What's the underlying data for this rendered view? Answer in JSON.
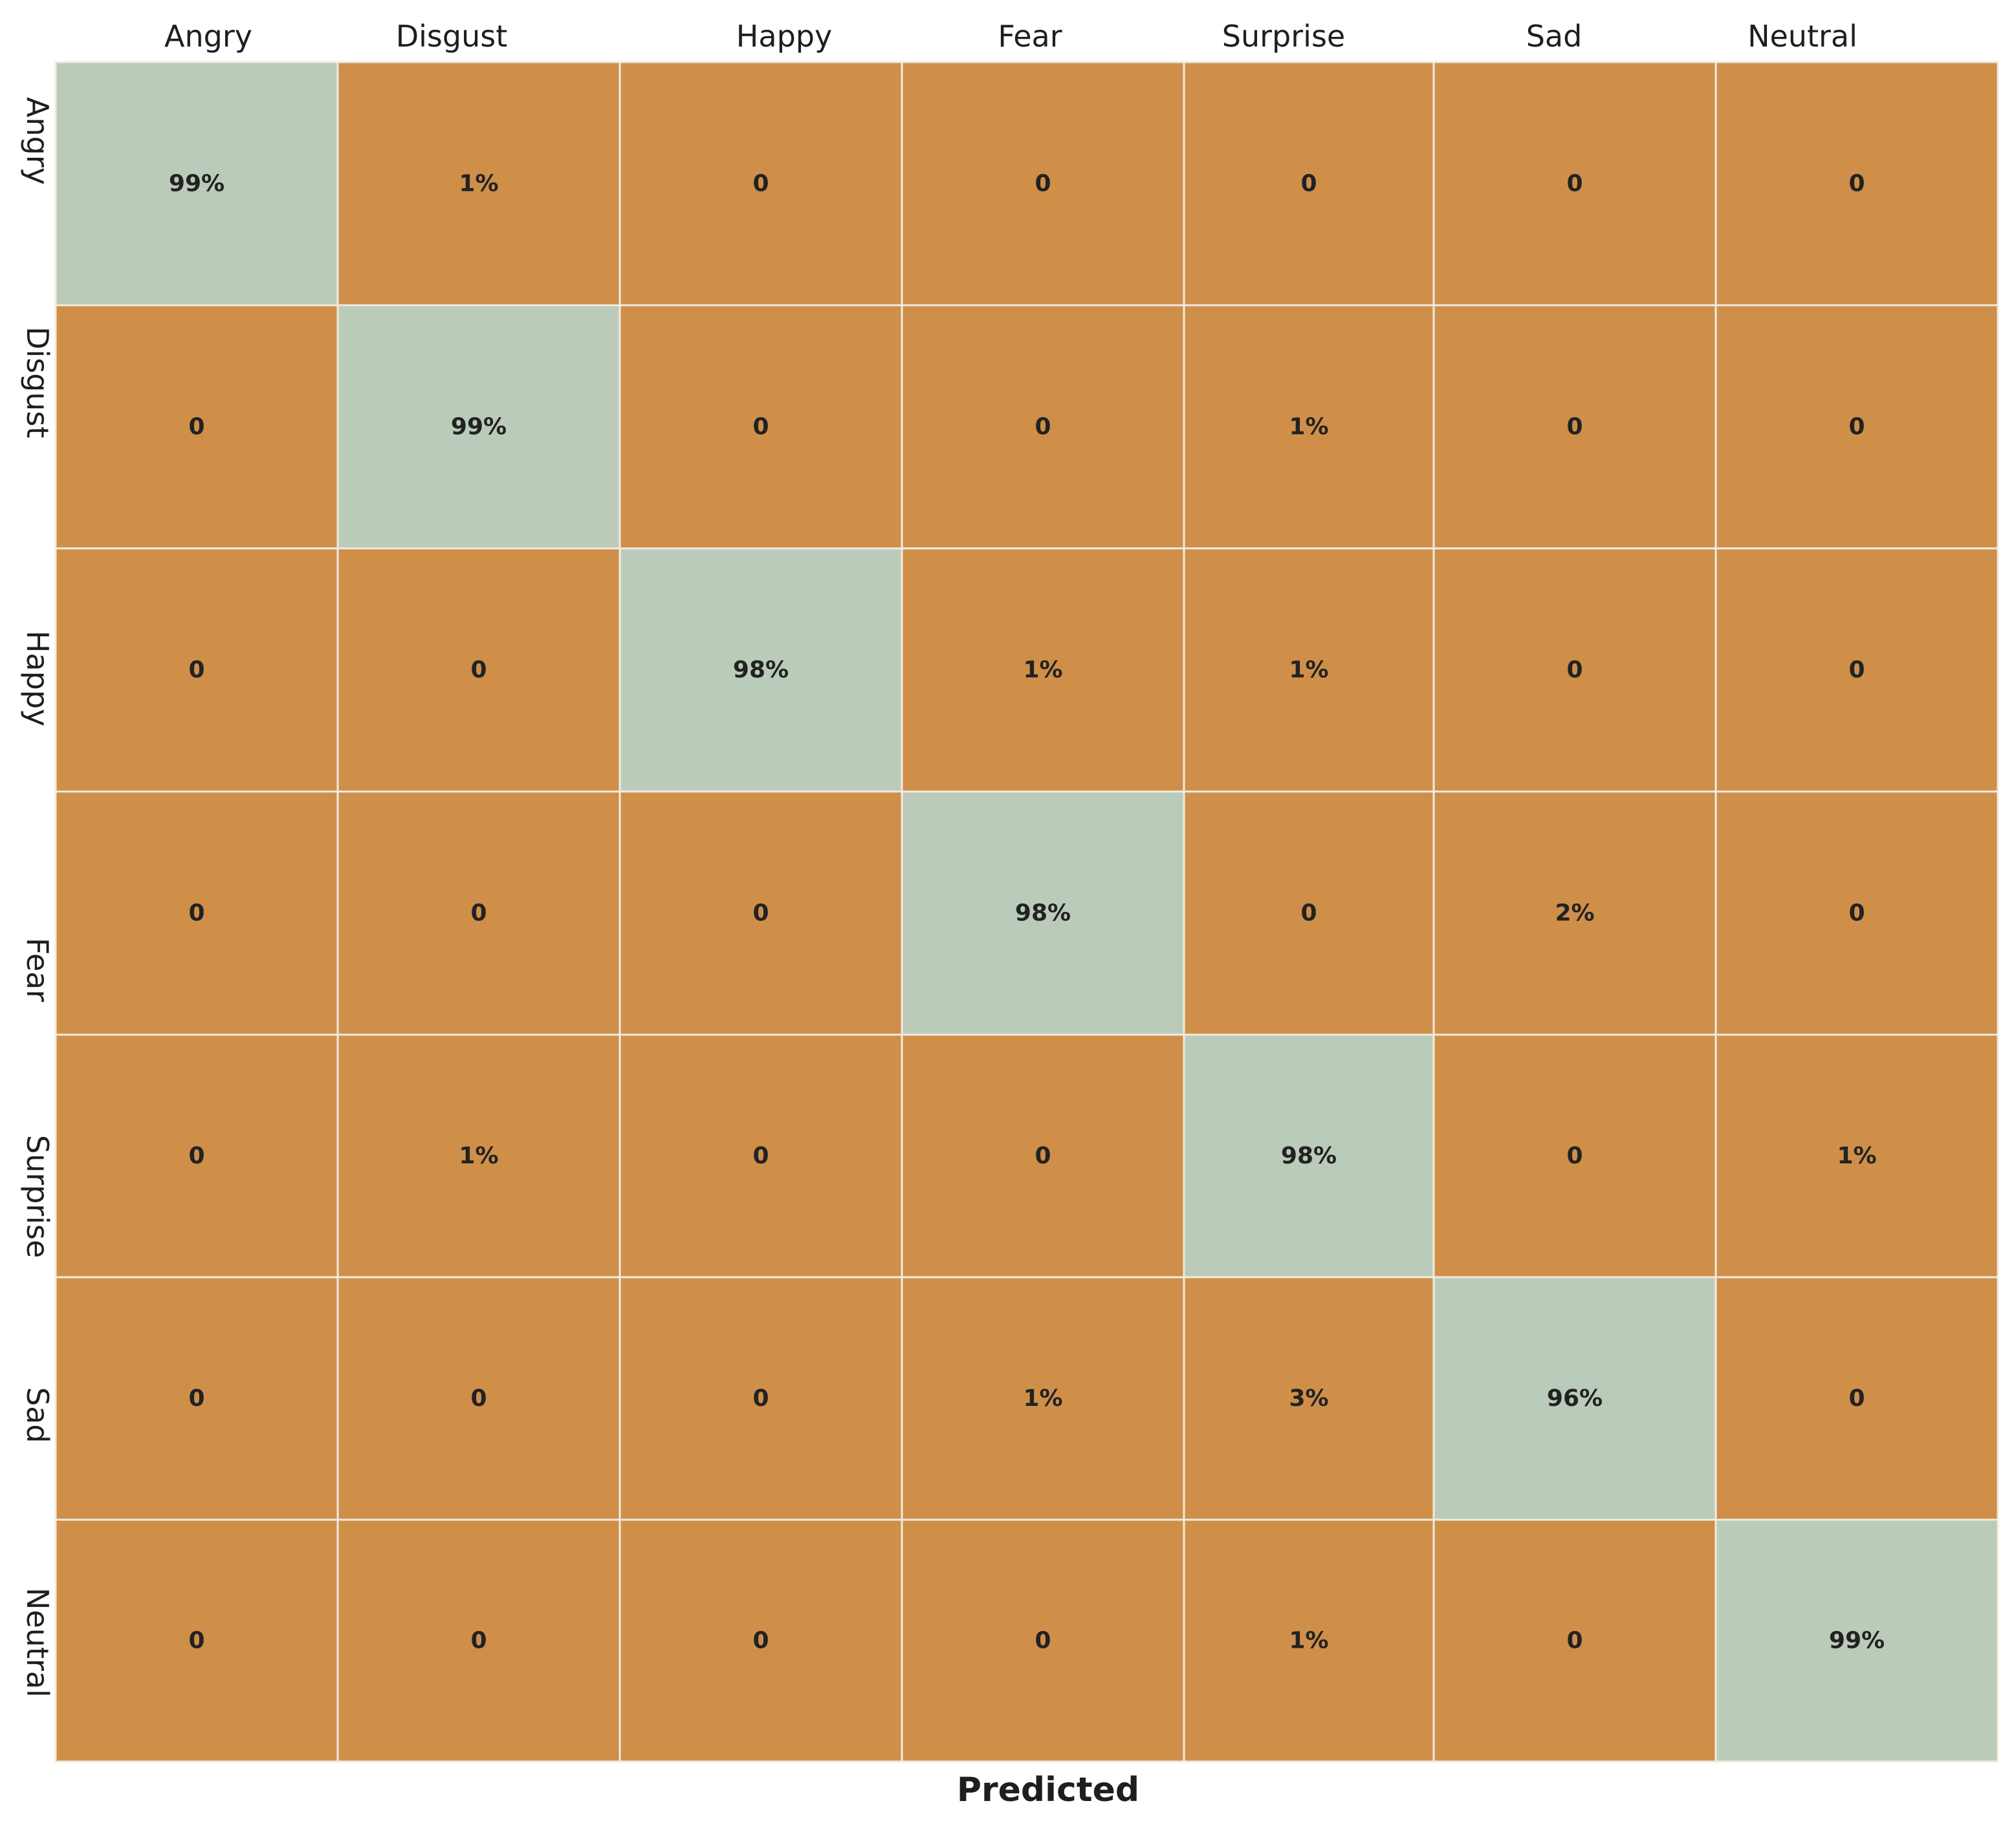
{
  "chart_data": {
    "type": "heatmap",
    "title": "",
    "xlabel": "Predicted",
    "ylabel": "",
    "columns": [
      "Angry",
      "Disgust",
      "Happy",
      "Fear",
      "Surprise",
      "Sad",
      "Neutral"
    ],
    "rows": [
      "Angry",
      "Disgust",
      "Happy",
      "Fear",
      "Surprise",
      "Sad",
      "Neutral"
    ],
    "cells": [
      [
        "99%",
        "1%",
        "0",
        "0",
        "0",
        "0",
        "0"
      ],
      [
        "0",
        "99%",
        "0",
        "0",
        "1%",
        "0",
        "0"
      ],
      [
        "0",
        "0",
        "98%",
        "1%",
        "1%",
        "0",
        "0"
      ],
      [
        "0",
        "0",
        "0",
        "98%",
        "0",
        "2%",
        "0"
      ],
      [
        "0",
        "1%",
        "0",
        "0",
        "98%",
        "0",
        "1%"
      ],
      [
        "0",
        "0",
        "0",
        "1%",
        "3%",
        "96%",
        "0"
      ],
      [
        "0",
        "0",
        "0",
        "0",
        "1%",
        "0",
        "99%"
      ]
    ],
    "values": [
      [
        99,
        1,
        0,
        0,
        0,
        0,
        0
      ],
      [
        0,
        99,
        0,
        0,
        1,
        0,
        0
      ],
      [
        0,
        0,
        98,
        1,
        1,
        0,
        0
      ],
      [
        0,
        0,
        0,
        98,
        0,
        2,
        0
      ],
      [
        0,
        1,
        0,
        0,
        98,
        0,
        1
      ],
      [
        0,
        0,
        0,
        1,
        3,
        96,
        0
      ],
      [
        0,
        0,
        0,
        0,
        1,
        0,
        99
      ]
    ],
    "colors": {
      "diagonal": "#bbcbb9",
      "off_diagonal": "#cf8f49",
      "gridline": "#f2ebe1"
    },
    "legend": "none",
    "grid": true
  }
}
